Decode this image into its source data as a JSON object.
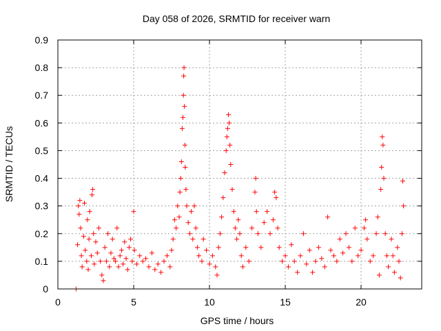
{
  "chart_data": {
    "type": "scatter",
    "title": "Day 058 of 2026, SRMTID for receiver warn",
    "xlabel": "GPS time / hours",
    "ylabel": "SRMTID / TECUs",
    "xlim": [
      0,
      24
    ],
    "ylim": [
      0,
      0.9
    ],
    "xticks": [
      0,
      5,
      10,
      15,
      20
    ],
    "xtick_labels": [
      "0",
      "5",
      "10",
      "15",
      "20"
    ],
    "yticks": [
      0,
      0.1,
      0.2,
      0.3,
      0.4,
      0.5,
      0.6,
      0.7,
      0.8,
      0.9
    ],
    "ytick_labels": [
      "0",
      "0.1",
      "0.2",
      "0.3",
      "0.4",
      "0.5",
      "0.6",
      "0.7",
      "0.8",
      "0.9"
    ],
    "grid": true,
    "marker": "plus",
    "color": "#ff0000",
    "series": [
      {
        "name": "SRMTID",
        "points": [
          [
            1.2,
            0.0
          ],
          [
            1.3,
            0.16
          ],
          [
            1.35,
            0.3
          ],
          [
            1.4,
            0.27
          ],
          [
            1.45,
            0.32
          ],
          [
            1.5,
            0.22
          ],
          [
            1.55,
            0.12
          ],
          [
            1.6,
            0.08
          ],
          [
            1.7,
            0.19
          ],
          [
            1.75,
            0.31
          ],
          [
            1.8,
            0.14
          ],
          [
            1.9,
            0.1
          ],
          [
            1.95,
            0.25
          ],
          [
            2.0,
            0.07
          ],
          [
            2.05,
            0.18
          ],
          [
            2.1,
            0.28
          ],
          [
            2.2,
            0.12
          ],
          [
            2.25,
            0.34
          ],
          [
            2.3,
            0.36
          ],
          [
            2.35,
            0.2
          ],
          [
            2.4,
            0.09
          ],
          [
            2.5,
            0.17
          ],
          [
            2.6,
            0.13
          ],
          [
            2.7,
            0.22
          ],
          [
            2.8,
            0.1
          ],
          [
            2.9,
            0.05
          ],
          [
            3.0,
            0.03
          ],
          [
            3.1,
            0.15
          ],
          [
            3.2,
            0.1
          ],
          [
            3.3,
            0.2
          ],
          [
            3.4,
            0.08
          ],
          [
            3.5,
            0.13
          ],
          [
            3.6,
            0.18
          ],
          [
            3.7,
            0.11
          ],
          [
            3.8,
            0.1
          ],
          [
            3.9,
            0.22
          ],
          [
            4.0,
            0.08
          ],
          [
            4.1,
            0.12
          ],
          [
            4.2,
            0.14
          ],
          [
            4.3,
            0.09
          ],
          [
            4.4,
            0.17
          ],
          [
            4.5,
            0.11
          ],
          [
            4.6,
            0.07
          ],
          [
            4.7,
            0.15
          ],
          [
            4.8,
            0.18
          ],
          [
            4.9,
            0.1
          ],
          [
            5.0,
            0.28
          ],
          [
            5.05,
            0.14
          ],
          [
            5.2,
            0.09
          ],
          [
            5.4,
            0.12
          ],
          [
            5.6,
            0.1
          ],
          [
            5.8,
            0.11
          ],
          [
            6.0,
            0.08
          ],
          [
            6.2,
            0.13
          ],
          [
            6.4,
            0.07
          ],
          [
            6.6,
            0.09
          ],
          [
            6.8,
            0.06
          ],
          [
            7.0,
            0.1
          ],
          [
            7.2,
            0.12
          ],
          [
            7.4,
            0.08
          ],
          [
            7.5,
            0.14
          ],
          [
            7.6,
            0.18
          ],
          [
            7.7,
            0.25
          ],
          [
            7.8,
            0.22
          ],
          [
            7.9,
            0.3
          ],
          [
            8.0,
            0.26
          ],
          [
            8.05,
            0.35
          ],
          [
            8.1,
            0.4
          ],
          [
            8.15,
            0.46
          ],
          [
            8.2,
            0.58
          ],
          [
            8.25,
            0.62
          ],
          [
            8.28,
            0.7
          ],
          [
            8.3,
            0.77
          ],
          [
            8.32,
            0.8
          ],
          [
            8.35,
            0.66
          ],
          [
            8.38,
            0.52
          ],
          [
            8.4,
            0.44
          ],
          [
            8.45,
            0.36
          ],
          [
            8.5,
            0.3
          ],
          [
            8.6,
            0.24
          ],
          [
            8.7,
            0.2
          ],
          [
            8.8,
            0.28
          ],
          [
            8.9,
            0.18
          ],
          [
            9.0,
            0.3
          ],
          [
            9.1,
            0.22
          ],
          [
            9.2,
            0.15
          ],
          [
            9.3,
            0.12
          ],
          [
            9.5,
            0.1
          ],
          [
            9.6,
            0.18
          ],
          [
            9.8,
            0.14
          ],
          [
            10.0,
            0.09
          ],
          [
            10.2,
            0.12
          ],
          [
            10.4,
            0.08
          ],
          [
            10.5,
            0.05
          ],
          [
            10.6,
            0.15
          ],
          [
            10.7,
            0.2
          ],
          [
            10.8,
            0.26
          ],
          [
            10.9,
            0.33
          ],
          [
            11.0,
            0.42
          ],
          [
            11.1,
            0.5
          ],
          [
            11.15,
            0.55
          ],
          [
            11.2,
            0.58
          ],
          [
            11.25,
            0.63
          ],
          [
            11.3,
            0.6
          ],
          [
            11.35,
            0.52
          ],
          [
            11.4,
            0.45
          ],
          [
            11.5,
            0.36
          ],
          [
            11.6,
            0.28
          ],
          [
            11.7,
            0.22
          ],
          [
            11.8,
            0.18
          ],
          [
            11.9,
            0.25
          ],
          [
            12.0,
            0.2
          ],
          [
            12.1,
            0.12
          ],
          [
            12.2,
            0.08
          ],
          [
            12.4,
            0.15
          ],
          [
            12.6,
            0.1
          ],
          [
            12.8,
            0.22
          ],
          [
            13.0,
            0.35
          ],
          [
            13.05,
            0.4
          ],
          [
            13.1,
            0.28
          ],
          [
            13.2,
            0.2
          ],
          [
            13.4,
            0.15
          ],
          [
            13.6,
            0.24
          ],
          [
            13.8,
            0.28
          ],
          [
            14.0,
            0.2
          ],
          [
            14.2,
            0.25
          ],
          [
            14.3,
            0.35
          ],
          [
            14.4,
            0.33
          ],
          [
            14.5,
            0.22
          ],
          [
            14.6,
            0.15
          ],
          [
            14.8,
            0.1
          ],
          [
            15.0,
            0.12
          ],
          [
            15.2,
            0.08
          ],
          [
            15.4,
            0.16
          ],
          [
            15.6,
            0.1
          ],
          [
            15.8,
            0.06
          ],
          [
            16.0,
            0.12
          ],
          [
            16.2,
            0.2
          ],
          [
            16.4,
            0.09
          ],
          [
            16.6,
            0.14
          ],
          [
            16.8,
            0.06
          ],
          [
            17.0,
            0.1
          ],
          [
            17.2,
            0.15
          ],
          [
            17.4,
            0.11
          ],
          [
            17.6,
            0.08
          ],
          [
            17.8,
            0.26
          ],
          [
            18.0,
            0.14
          ],
          [
            18.2,
            0.12
          ],
          [
            18.4,
            0.1
          ],
          [
            18.6,
            0.18
          ],
          [
            18.8,
            0.13
          ],
          [
            19.0,
            0.2
          ],
          [
            19.2,
            0.15
          ],
          [
            19.4,
            0.1
          ],
          [
            19.6,
            0.22
          ],
          [
            19.8,
            0.12
          ],
          [
            20.0,
            0.14
          ],
          [
            20.2,
            0.22
          ],
          [
            20.3,
            0.25
          ],
          [
            20.4,
            0.18
          ],
          [
            20.6,
            0.1
          ],
          [
            20.8,
            0.12
          ],
          [
            21.0,
            0.2
          ],
          [
            21.1,
            0.26
          ],
          [
            21.2,
            0.05
          ],
          [
            21.3,
            0.36
          ],
          [
            21.35,
            0.44
          ],
          [
            21.4,
            0.55
          ],
          [
            21.45,
            0.52
          ],
          [
            21.5,
            0.4
          ],
          [
            21.6,
            0.2
          ],
          [
            21.7,
            0.12
          ],
          [
            21.8,
            0.08
          ],
          [
            22.0,
            0.18
          ],
          [
            22.1,
            0.12
          ],
          [
            22.2,
            0.06
          ],
          [
            22.4,
            0.15
          ],
          [
            22.5,
            0.1
          ],
          [
            22.6,
            0.04
          ],
          [
            22.7,
            0.2
          ],
          [
            22.75,
            0.39
          ],
          [
            22.8,
            0.3
          ]
        ]
      }
    ]
  }
}
